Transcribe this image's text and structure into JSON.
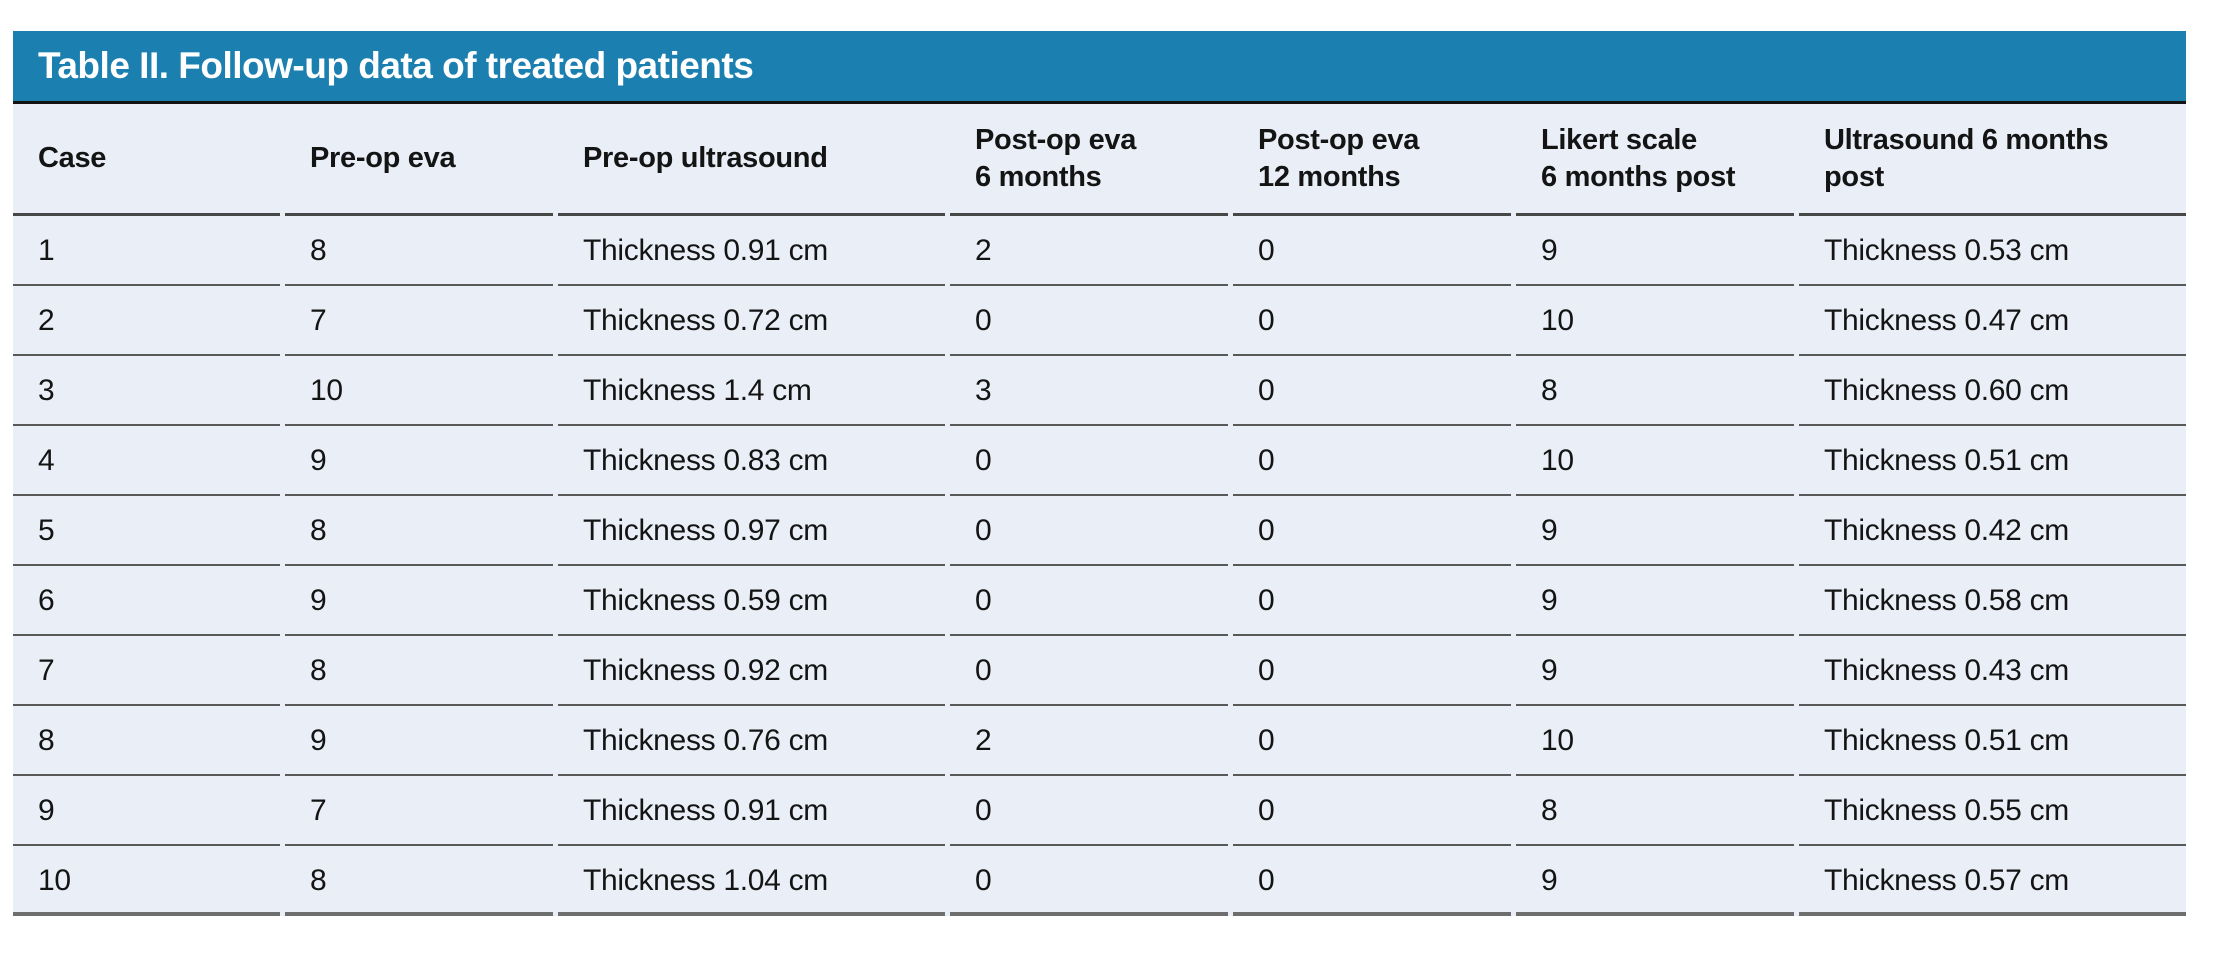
{
  "title": "Table II. Follow-up data of treated patients",
  "colors": {
    "title_bar_background": "#1b80b0",
    "title_text": "#ffffff",
    "row_background": "#e9eef7",
    "separator_line": "#585858",
    "body_text": "#141414"
  },
  "table": {
    "columns": [
      "Case",
      "Pre-op eva",
      "Pre-op ultrasound",
      "Post-op eva\n6 months",
      "Post-op eva\n12 months",
      "Likert scale\n6 months post",
      "Ultrasound 6 months\npost"
    ],
    "rows": [
      [
        "1",
        "8",
        "Thickness 0.91 cm",
        "2",
        "0",
        "9",
        "Thickness 0.53 cm"
      ],
      [
        "2",
        "7",
        "Thickness 0.72 cm",
        "0",
        "0",
        "10",
        "Thickness 0.47 cm"
      ],
      [
        "3",
        "10",
        "Thickness 1.4 cm",
        "3",
        "0",
        "8",
        "Thickness 0.60 cm"
      ],
      [
        "4",
        "9",
        "Thickness 0.83 cm",
        "0",
        "0",
        "10",
        "Thickness 0.51 cm"
      ],
      [
        "5",
        "8",
        "Thickness 0.97 cm",
        "0",
        "0",
        "9",
        "Thickness 0.42 cm"
      ],
      [
        "6",
        "9",
        "Thickness 0.59 cm",
        "0",
        "0",
        "9",
        "Thickness 0.58 cm"
      ],
      [
        "7",
        "8",
        "Thickness 0.92 cm",
        "0",
        "0",
        "9",
        "Thickness 0.43 cm"
      ],
      [
        "8",
        "9",
        "Thickness 0.76 cm",
        "2",
        "0",
        "10",
        "Thickness 0.51 cm"
      ],
      [
        "9",
        "7",
        "Thickness 0.91 cm",
        "0",
        "0",
        "8",
        "Thickness 0.55 cm"
      ],
      [
        "10",
        "8",
        "Thickness 1.04 cm",
        "0",
        "0",
        "9",
        "Thickness 0.57 cm"
      ]
    ]
  }
}
